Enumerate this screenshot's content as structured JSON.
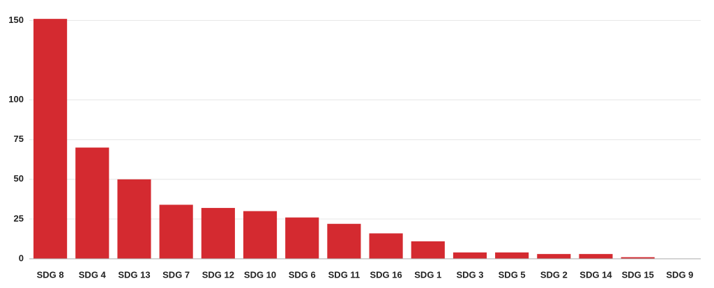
{
  "chart_data": {
    "type": "bar",
    "categories": [
      "SDG 8",
      "SDG 4",
      "SDG 13",
      "SDG 7",
      "SDG 12",
      "SDG 10",
      "SDG 6",
      "SDG 11",
      "SDG 16",
      "SDG 1",
      "SDG 3",
      "SDG 5",
      "SDG 2",
      "SDG 14",
      "SDG 15",
      "SDG 9"
    ],
    "values": [
      151,
      70,
      50,
      34,
      32,
      30,
      26,
      22,
      16,
      11,
      4,
      4,
      3,
      3,
      1,
      0
    ],
    "color": "#d42a30",
    "ylim": [
      0,
      155
    ],
    "yticks": [
      0,
      25,
      50,
      75,
      100,
      150
    ],
    "grid": true
  }
}
